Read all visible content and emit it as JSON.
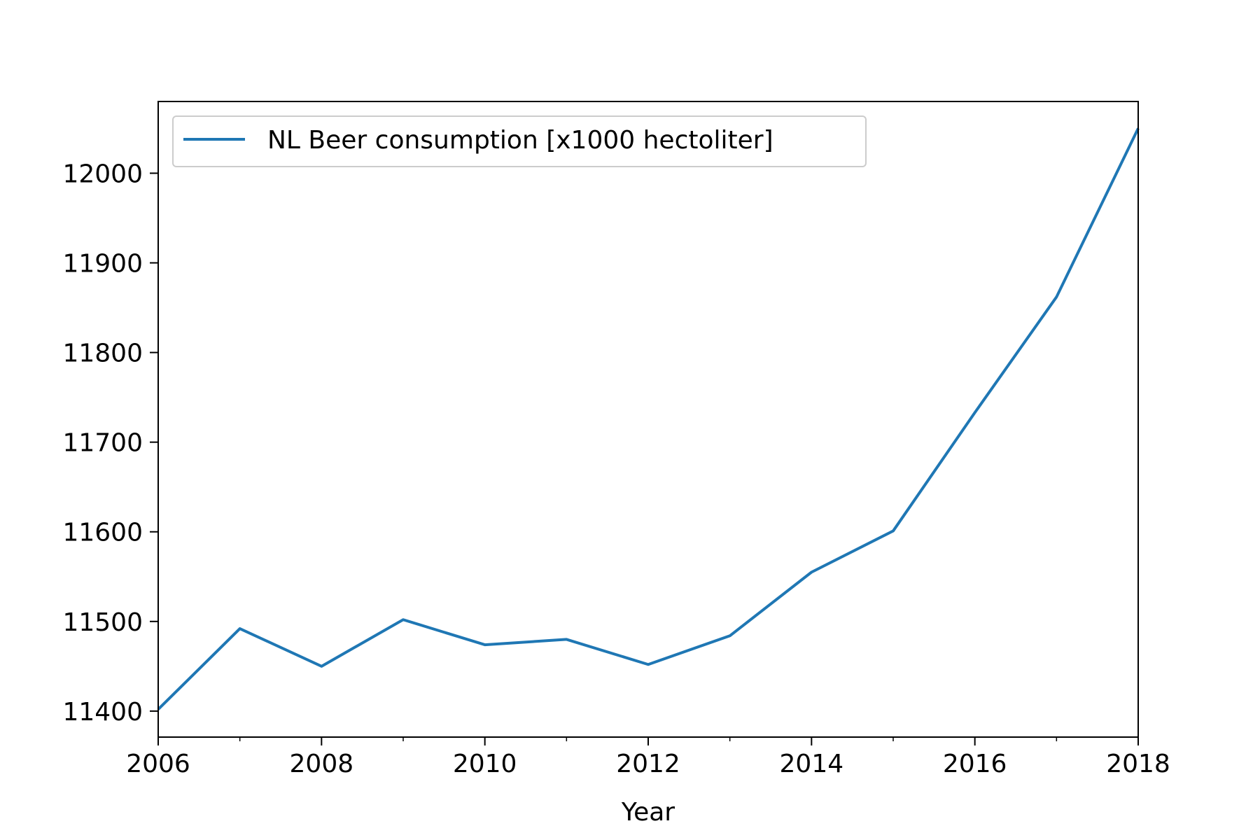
{
  "chart_data": {
    "type": "line",
    "title": "",
    "xlabel": "Year",
    "ylabel": "",
    "x": [
      2006,
      2007,
      2008,
      2009,
      2010,
      2011,
      2012,
      2013,
      2014,
      2015,
      2016,
      2017,
      2018
    ],
    "series": [
      {
        "name": "NL Beer consumption [x1000 hectoliter]",
        "color": "#1f77b4",
        "values": [
          11402,
          11492,
          11450,
          11502,
          11474,
          11480,
          11452,
          11484,
          11555,
          11601,
          11733,
          11862,
          12050
        ]
      }
    ],
    "xlim": [
      2006,
      2018
    ],
    "ylim": [
      11371,
      12080
    ],
    "x_major_ticks": [
      2006,
      2008,
      2010,
      2012,
      2014,
      2016,
      2018
    ],
    "x_minor_ticks": [
      2007,
      2009,
      2011,
      2013,
      2015,
      2017
    ],
    "y_ticks": [
      11400,
      11500,
      11600,
      11700,
      11800,
      11900,
      12000
    ],
    "grid": false,
    "legend_position": "upper-left"
  }
}
